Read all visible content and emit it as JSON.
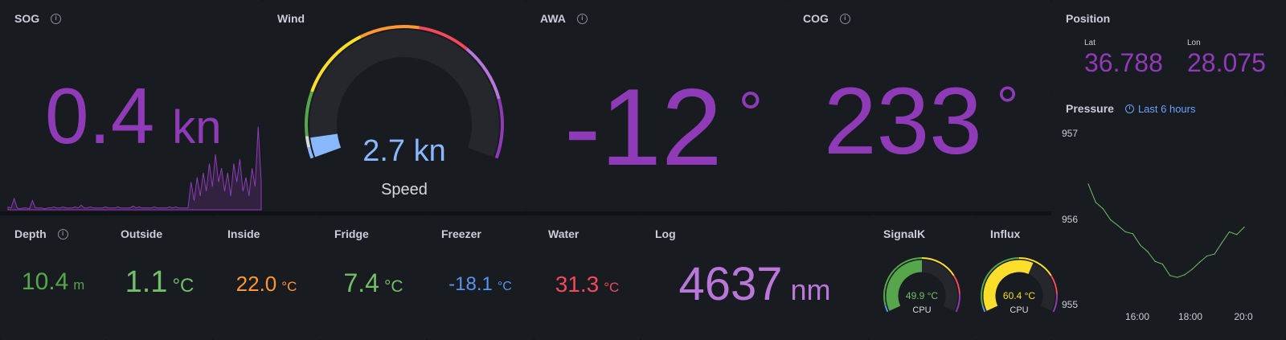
{
  "colors": {
    "purple": "#8f3bb8",
    "light_purple": "#b877d9",
    "green": "#56a64b",
    "light_green": "#73bf69",
    "orange": "#ff9830",
    "blue": "#5794f2",
    "red": "#f2495c",
    "yellow": "#fade2a",
    "wind_blue": "#8ab8ff"
  },
  "sog": {
    "title": "SOG",
    "value": "0.4",
    "unit": "kn",
    "icon": "info-icon",
    "sparkline": [
      0.03,
      0.02,
      0.12,
      0.02,
      0.01,
      0.02,
      0.02,
      0.01,
      0.1,
      0.02,
      0.02,
      0.02,
      0.01,
      0.02,
      0.02,
      0.03,
      0.02,
      0.02,
      0.03,
      0.02,
      0.02,
      0.02,
      0.03,
      0.02,
      0.05,
      0.02,
      0.02,
      0.03,
      0.02,
      0.02,
      0.02,
      0.02,
      0.03,
      0.02,
      0.02,
      0.02,
      0.03,
      0.02,
      0.02,
      0.02,
      0.02,
      0.04,
      0.02,
      0.03,
      0.02,
      0.02,
      0.02,
      0.02,
      0.03,
      0.02,
      0.02,
      0.02,
      0.02,
      0.03,
      0.02,
      0.03,
      0.02,
      0.02,
      0.02,
      0.02,
      0.3,
      0.1,
      0.35,
      0.15,
      0.4,
      0.2,
      0.5,
      0.25,
      0.6,
      0.3,
      0.45,
      0.2,
      0.4,
      0.15,
      0.5,
      0.3,
      0.55,
      0.2,
      0.35,
      0.15,
      0.45,
      0.25,
      0.9,
      0.3
    ]
  },
  "wind": {
    "title": "Wind",
    "value": "2.7 kn",
    "label": "Speed",
    "fraction": 0.055
  },
  "awa": {
    "title": "AWA",
    "value": "-12",
    "unit": "°",
    "icon": "info-icon"
  },
  "cog": {
    "title": "COG",
    "value": "233",
    "unit": "°",
    "icon": "info-icon"
  },
  "position": {
    "title": "Position",
    "lat_label": "Lat",
    "lat": "36.788",
    "lon_label": "Lon",
    "lon": "28.075"
  },
  "pressure": {
    "title": "Pressure",
    "time_range": "Last 6 hours",
    "y_ticks": [
      "957",
      "956",
      "955"
    ],
    "x_ticks": [
      "16:00",
      "18:00",
      "20:0"
    ],
    "chart_data": {
      "type": "line",
      "ylim": [
        955,
        957
      ],
      "x": [
        "14:45",
        "15:00",
        "15:15",
        "15:30",
        "15:45",
        "16:00",
        "16:15",
        "16:30",
        "16:45",
        "17:00",
        "17:15",
        "17:30",
        "17:45",
        "18:00",
        "18:15",
        "18:30",
        "18:45",
        "19:00",
        "19:15",
        "19:30",
        "19:45",
        "20:00"
      ],
      "series": [
        {
          "values": [
            956.4,
            956.2,
            956.1,
            956.0,
            955.9,
            955.85,
            955.8,
            955.7,
            955.6,
            955.5,
            955.45,
            955.35,
            955.3,
            955.35,
            955.4,
            955.5,
            955.55,
            955.6,
            955.7,
            955.85,
            955.8,
            955.9
          ]
        }
      ]
    }
  },
  "depth": {
    "title": "Depth",
    "value": "10.4",
    "unit": "m",
    "icon": "info-icon"
  },
  "outside": {
    "title": "Outside",
    "value": "1.1",
    "unit": "°C"
  },
  "inside": {
    "title": "Inside",
    "value": "22.0",
    "unit": "°C"
  },
  "fridge": {
    "title": "Fridge",
    "value": "7.4",
    "unit": "°C"
  },
  "freezer": {
    "title": "Freezer",
    "value": "-18.1",
    "unit": "°C"
  },
  "water": {
    "title": "Water",
    "value": "31.3",
    "unit": "°C"
  },
  "log": {
    "title": "Log",
    "value": "4637",
    "unit": "nm"
  },
  "signalk": {
    "title": "SignalK",
    "value": "49.9 °C",
    "label": "CPU",
    "fraction": 0.5
  },
  "influx": {
    "title": "Influx",
    "value": "60.4 °C",
    "label": "CPU",
    "fraction": 0.6
  }
}
